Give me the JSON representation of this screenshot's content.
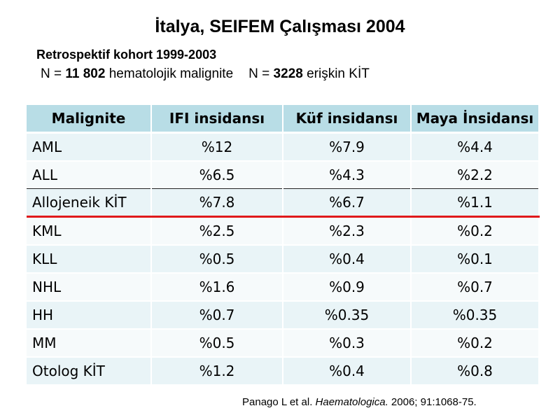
{
  "title": "İtalya, SEIFEM Çalışması 2004",
  "subtitle": "Retrospektif kohort 1999-2003",
  "population": {
    "n1_prefix": "N = ",
    "n1_value": "11 802",
    "n1_label": " hematolojik malignite",
    "n2_prefix": "N = ",
    "n2_value": "3228",
    "n2_label": " erişkin KİT"
  },
  "table": {
    "headers": [
      "Malignite",
      "IFI insidansı",
      "Küf insidansı",
      "Maya İnsidansı"
    ],
    "rows": [
      [
        "AML",
        "%12",
        "%7.9",
        "%4.4"
      ],
      [
        "ALL",
        "%6.5",
        "%4.3",
        "%2.2"
      ],
      [
        "Allojeneik KİT",
        "%7.8",
        "%6.7",
        "%1.1"
      ],
      [
        "KML",
        "%2.5",
        "%2.3",
        "%0.2"
      ],
      [
        "KLL",
        "%0.5",
        "%0.4",
        "%0.1"
      ],
      [
        "NHL",
        "%1.6",
        "%0.9",
        "%0.7"
      ],
      [
        "HH",
        "%0.7",
        "%0.35",
        "%0.35"
      ],
      [
        "MM",
        "%0.5",
        "%0.3",
        "%0.2"
      ],
      [
        "Otolog KİT",
        "%1.2",
        "%0.4",
        "%0.8"
      ]
    ]
  },
  "citation": {
    "authors": "Panago L et al. ",
    "journal": "Haematologica.",
    "details": " 2006; 91:1068-75."
  },
  "colors": {
    "header_bg": "#b8dde6",
    "row_odd_bg": "#e9f4f7",
    "row_even_bg": "#f6fafb",
    "separator_red": "#e0191b"
  }
}
